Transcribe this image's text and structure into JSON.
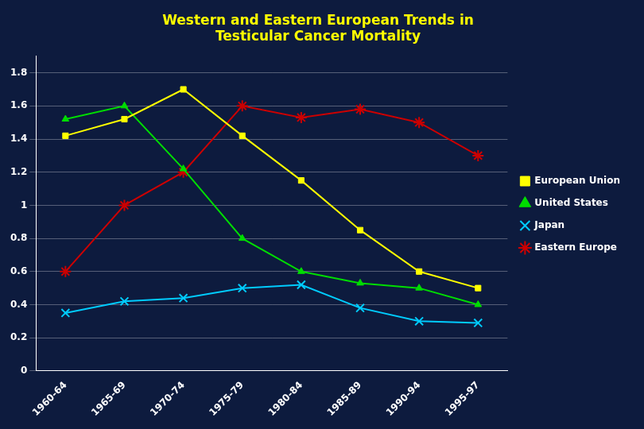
{
  "chart_data": {
    "type": "line",
    "title": "Western and Eastern European Trends in\nTesticular Cancer Mortality",
    "categories": [
      "1960-64",
      "1965-69",
      "1970-74",
      "1975-79",
      "1980-84",
      "1985-89",
      "1990-94",
      "1995-97"
    ],
    "series": [
      {
        "name": "European Union",
        "color": "#FFFF00",
        "marker": "square",
        "values": [
          1.42,
          1.52,
          1.7,
          1.42,
          1.15,
          0.85,
          0.6,
          0.5
        ]
      },
      {
        "name": "United States",
        "color": "#00DD00",
        "marker": "triangle",
        "values": [
          1.52,
          1.6,
          1.22,
          0.8,
          0.6,
          0.53,
          0.5,
          0.4
        ]
      },
      {
        "name": "Japan",
        "color": "#00CCFF",
        "marker": "x",
        "values": [
          0.35,
          0.42,
          0.44,
          0.5,
          0.52,
          0.38,
          0.3,
          0.29
        ]
      },
      {
        "name": "Eastern Europe",
        "color": "#CC0000",
        "marker": "star",
        "values": [
          0.6,
          1.0,
          1.2,
          1.6,
          1.53,
          1.58,
          1.5,
          1.3
        ]
      }
    ],
    "ylim": [
      0,
      1.9
    ],
    "yticks": [
      0,
      0.2,
      0.4,
      0.6,
      0.8,
      1.0,
      1.2,
      1.4,
      1.6,
      1.8
    ],
    "grid": true,
    "legend": "right"
  }
}
